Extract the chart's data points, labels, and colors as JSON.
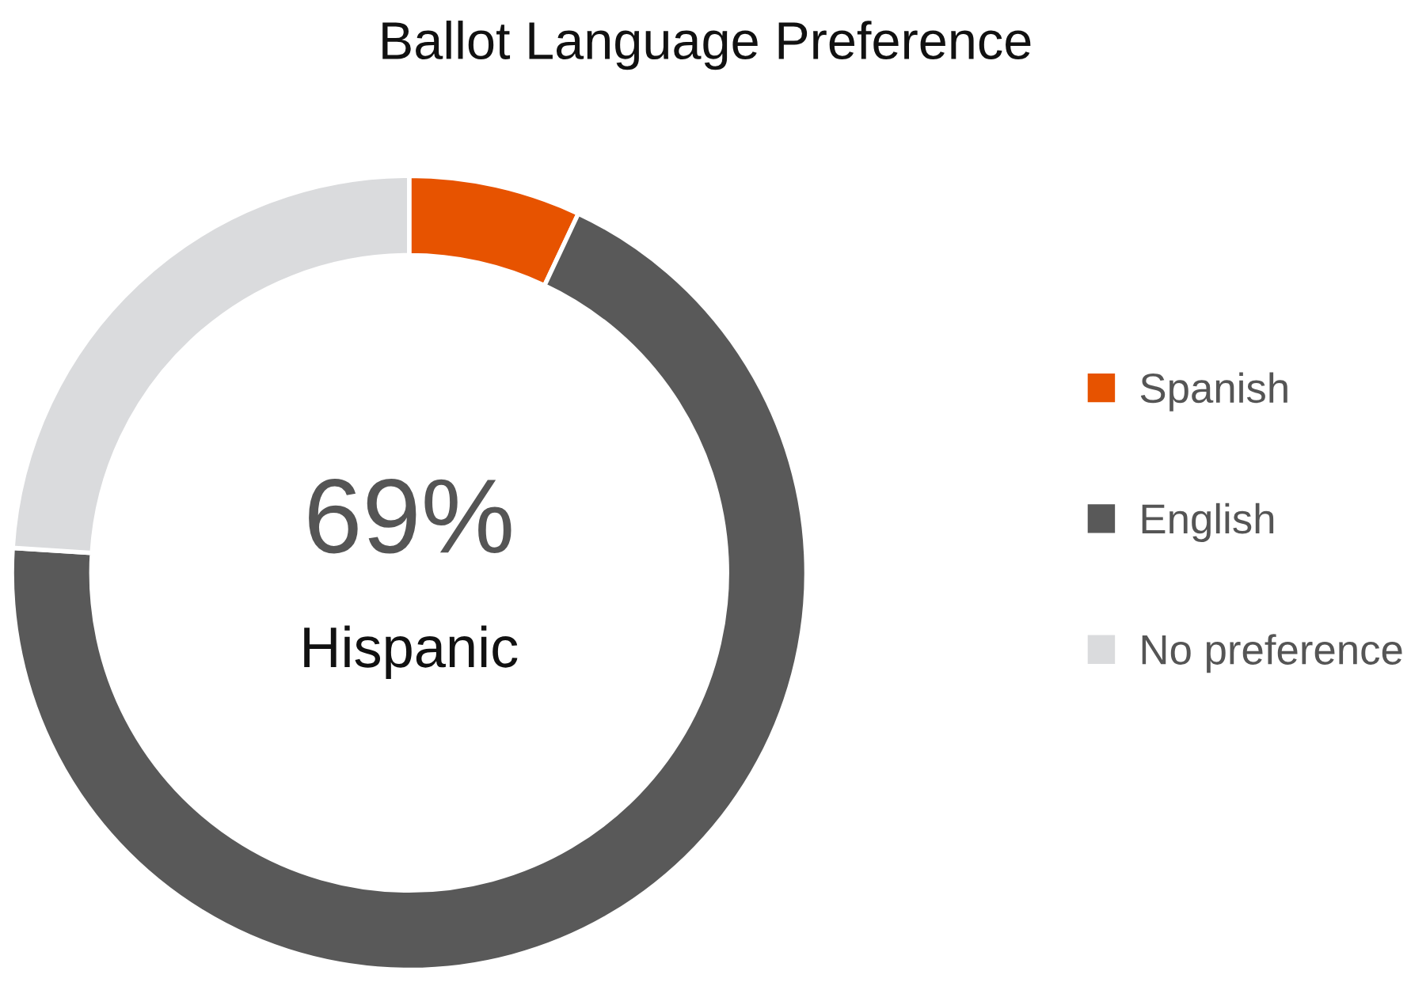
{
  "chart_data": {
    "type": "donut",
    "title": "Ballot Language Preference",
    "categories": [
      "Spanish",
      "English",
      "No preference"
    ],
    "values": [
      7,
      69,
      24
    ],
    "colors": [
      "#e75300",
      "#595959",
      "#dadbdd"
    ],
    "annotations": [
      "69%",
      "Hispanic"
    ],
    "legend": "right"
  }
}
